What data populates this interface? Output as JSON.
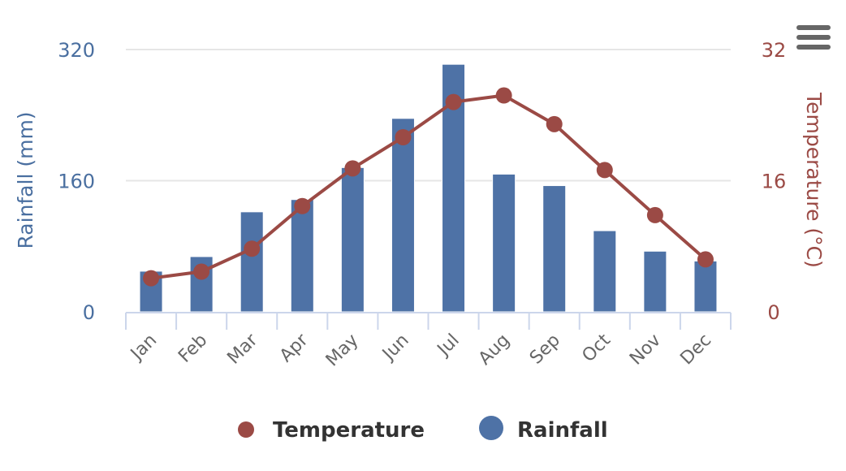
{
  "chart_data": {
    "type": "bar+line",
    "title": "",
    "categories": [
      "Jan",
      "Feb",
      "Mar",
      "Apr",
      "May",
      "Jun",
      "Jul",
      "Aug",
      "Sep",
      "Oct",
      "Nov",
      "Dec"
    ],
    "series": [
      {
        "name": "Rainfall",
        "type": "bar",
        "axis": "left",
        "color": "#4e72a6",
        "values": [
          49.6,
          67.4,
          122,
          137,
          176,
          236,
          302,
          168,
          154,
          99,
          74,
          62
        ]
      },
      {
        "name": "Temperature",
        "type": "line",
        "axis": "right",
        "color": "#9b4a45",
        "values": [
          4.1,
          4.9,
          7.7,
          12.9,
          17.5,
          21.3,
          25.6,
          26.4,
          22.9,
          17.3,
          11.8,
          6.4
        ]
      }
    ],
    "y_left": {
      "label": "Rainfall (mm)",
      "range": [
        0,
        320
      ],
      "ticks": [
        "0",
        "160",
        "320"
      ],
      "tick_values": [
        0,
        160,
        320
      ]
    },
    "y_right": {
      "label": "Temperature (°C)",
      "range": [
        0,
        32
      ],
      "ticks": [
        "0",
        "16",
        "32"
      ],
      "tick_values": [
        0,
        16,
        32
      ]
    },
    "grid": true,
    "legend": {
      "placement": "bottom-center",
      "items": [
        "Temperature",
        "Rainfall"
      ]
    }
  },
  "menu": {
    "icon": "hamburger-menu-icon"
  },
  "colors": {
    "axis_line": "#ccd6eb",
    "grid": "#e6e6e6",
    "menu": "#666666"
  }
}
